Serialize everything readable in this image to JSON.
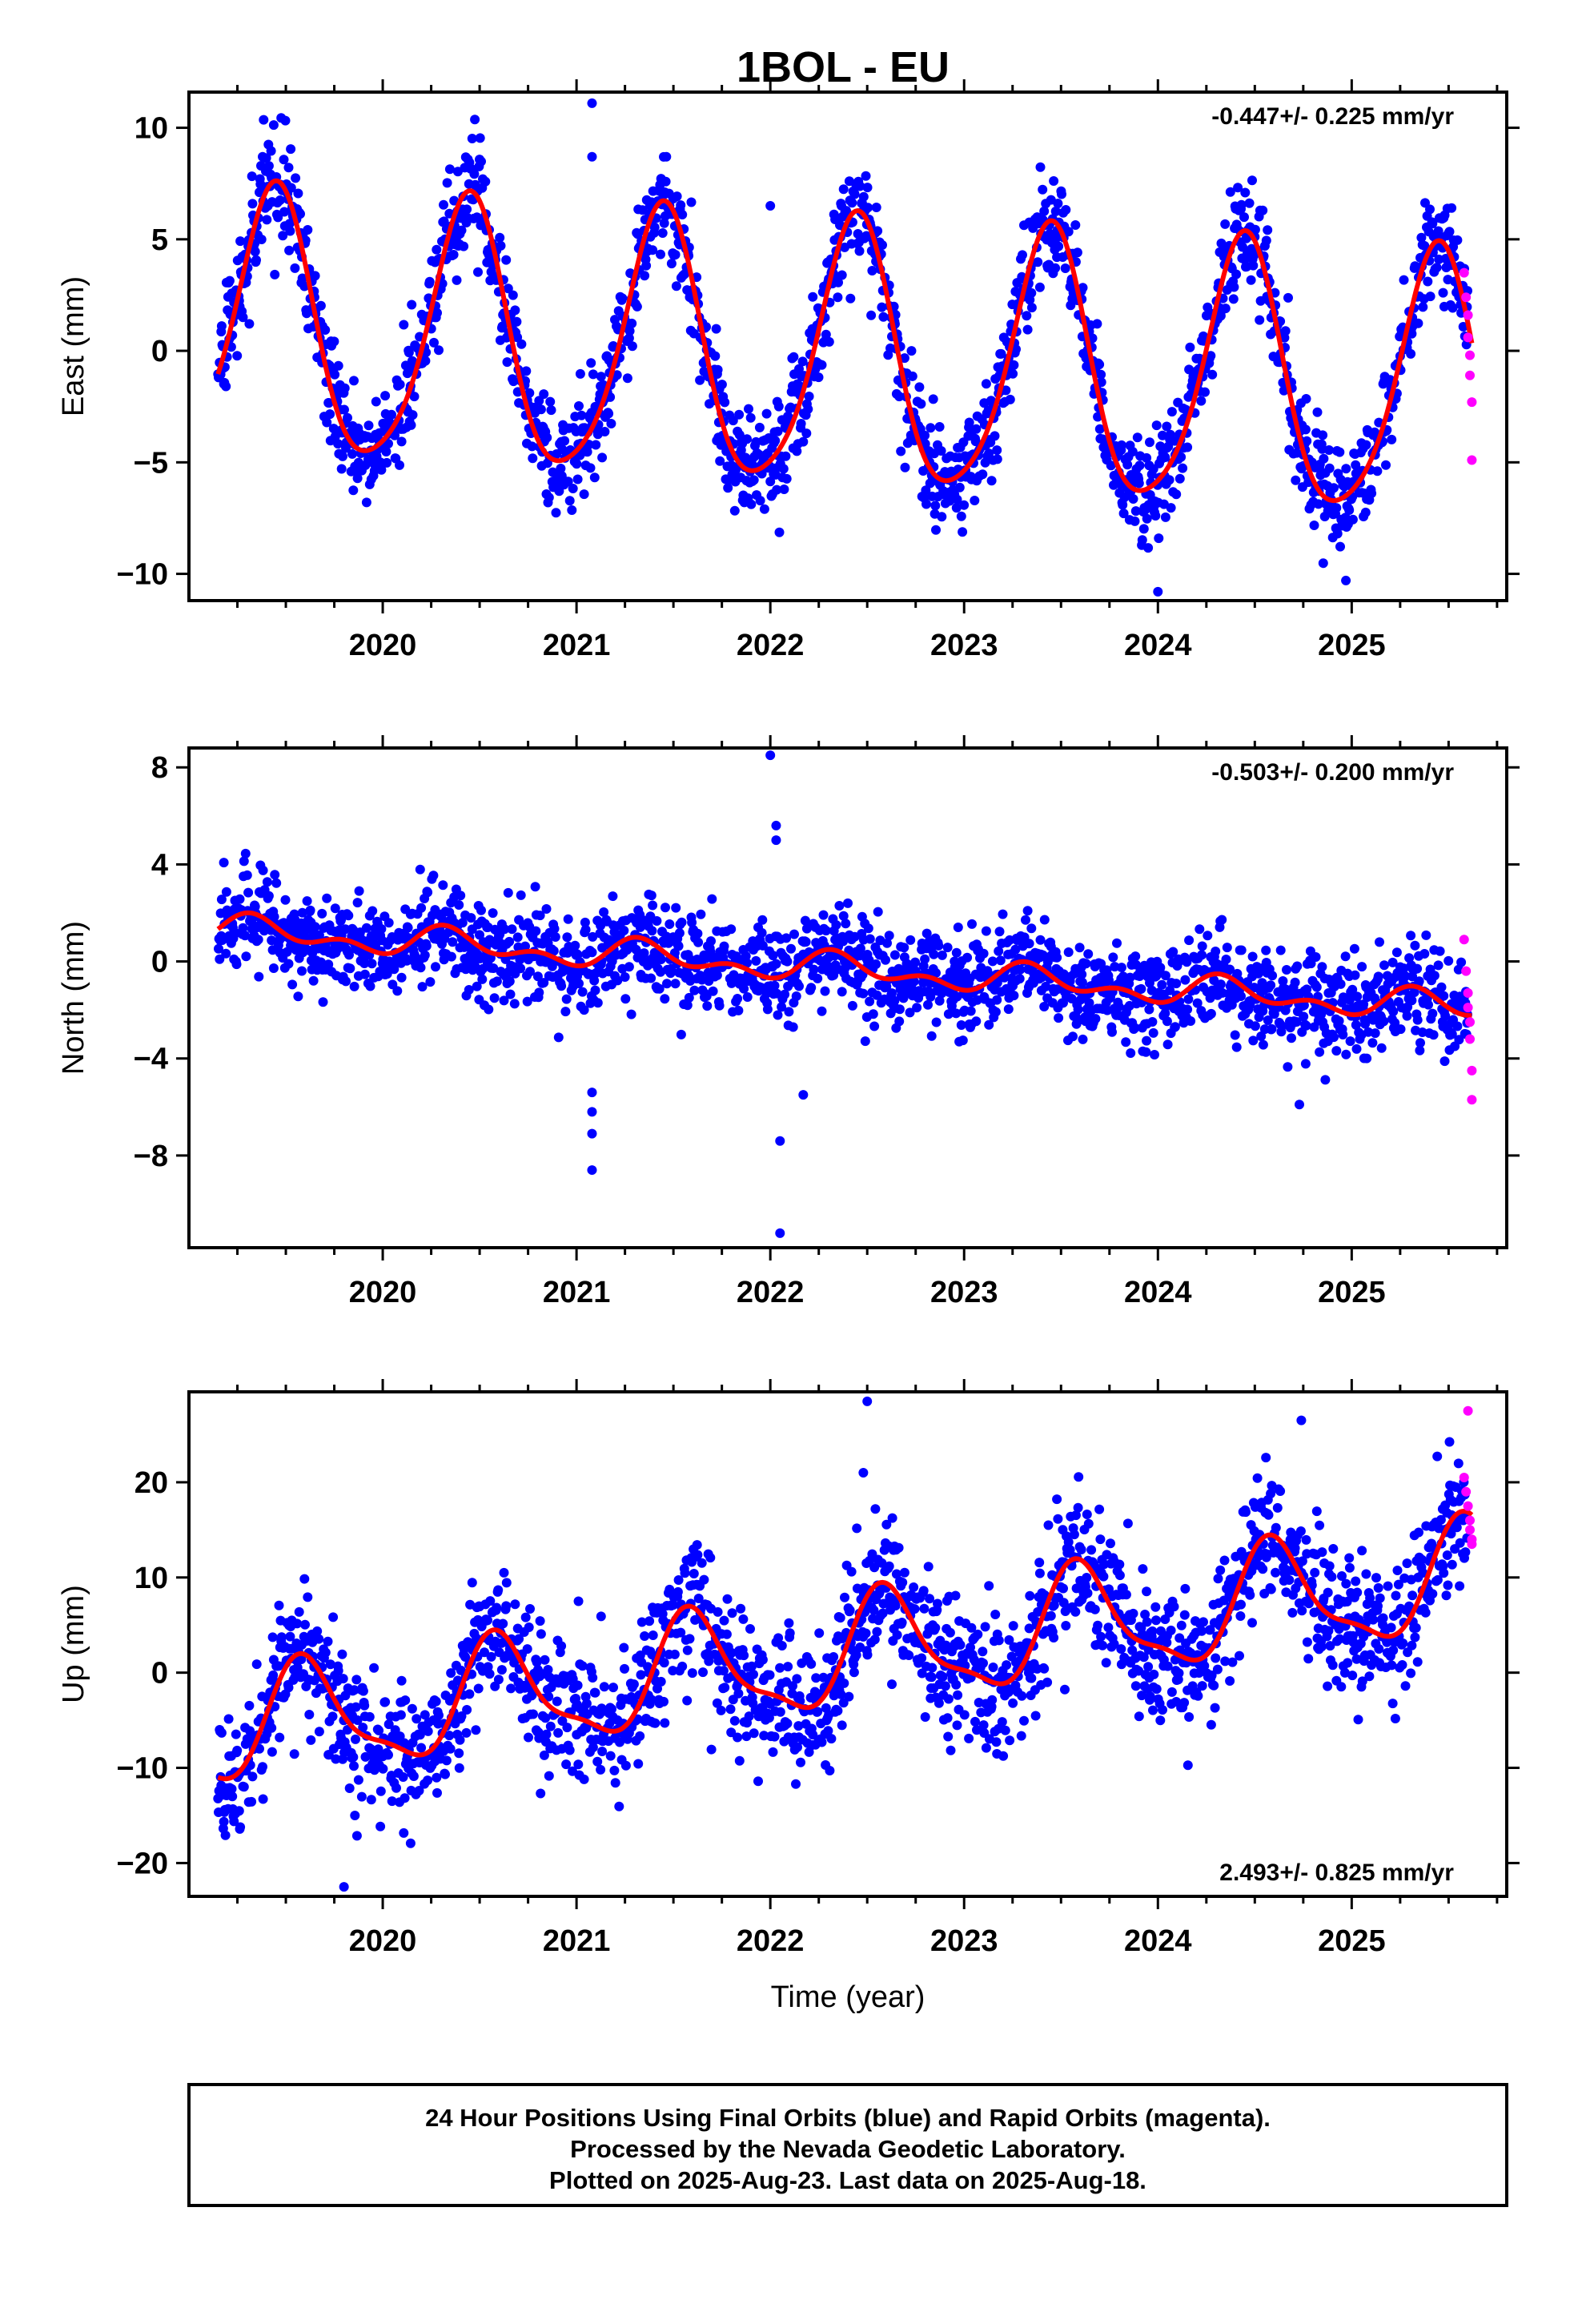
{
  "title": "1BOL - EU",
  "footer": {
    "line1": "24 Hour Positions Using Final Orbits (blue) and Rapid Orbits (magenta).",
    "line2": "Processed by the Nevada Geodetic Laboratory.",
    "line3": "Plotted on 2025-Aug-23. Last data on 2025-Aug-18."
  },
  "colors": {
    "final_orbits": "#0000ff",
    "rapid_orbits": "#ff00ff",
    "model_fit": "#ff0000"
  },
  "chart_data": [
    {
      "type": "scatter",
      "name": "east",
      "ylabel": "East (mm)",
      "xlabel": "",
      "rate_text": "-0.447+/- 0.225 mm/yr",
      "rate_position": "top-right",
      "xlim": [
        2019.0,
        2025.8
      ],
      "ylim": [
        -11.2,
        11.6
      ],
      "x_ticks": [
        2020,
        2021,
        2022,
        2023,
        2024,
        2025
      ],
      "x_tick_labels": [
        "2020",
        "2021",
        "2022",
        "2023",
        "2024",
        "2025"
      ],
      "y_ticks": [
        -10,
        -5,
        0,
        5,
        10
      ],
      "y_tick_labels": [
        "−10",
        "−5",
        "0",
        "5",
        "10"
      ],
      "grid": false,
      "model": {
        "t0": 2019.15,
        "t1": 2025.62,
        "offset": 1.0,
        "rate": -0.447,
        "annual_amp": 5.9,
        "annual_peak": 2019.44,
        "semiannual_amp": 0.9,
        "semiannual_peak": 2019.47
      },
      "scatter": {
        "sigma": 1.2,
        "outliers": [
          [
            2021.08,
            11.1
          ],
          [
            2021.08,
            8.7
          ],
          [
            2024.0,
            -10.8
          ],
          [
            2024.97,
            -10.3
          ],
          [
            2022.0,
            6.5
          ]
        ]
      },
      "rapid": {
        "points": [
          [
            2025.58,
            3.5
          ],
          [
            2025.59,
            2.4
          ],
          [
            2025.6,
            1.6
          ],
          [
            2025.6,
            0.6
          ],
          [
            2025.61,
            -0.2
          ],
          [
            2025.61,
            -1.1
          ],
          [
            2025.62,
            -2.3
          ],
          [
            2025.62,
            -4.9
          ]
        ]
      }
    },
    {
      "type": "scatter",
      "name": "north",
      "ylabel": "North (mm)",
      "xlabel": "",
      "rate_text": "-0.503+/- 0.200 mm/yr",
      "rate_position": "top-right",
      "xlim": [
        2019.0,
        2025.8
      ],
      "ylim": [
        -11.8,
        8.8
      ],
      "x_ticks": [
        2020,
        2021,
        2022,
        2023,
        2024,
        2025
      ],
      "x_tick_labels": [
        "2020",
        "2021",
        "2022",
        "2023",
        "2024",
        "2025"
      ],
      "y_ticks": [
        -8,
        -4,
        0,
        4,
        8
      ],
      "y_tick_labels": [
        "−8",
        "−4",
        "0",
        "4",
        "8"
      ],
      "grid": false,
      "model": {
        "t0": 2019.15,
        "t1": 2025.62,
        "offset": 1.3,
        "rate": -0.503,
        "annual_amp": 0.45,
        "annual_peak": 2019.35,
        "semiannual_amp": 0.35,
        "semiannual_peak": 2019.3
      },
      "scatter": {
        "sigma": 1.0,
        "outliers": [
          [
            2021.08,
            -8.6
          ],
          [
            2021.08,
            -7.1
          ],
          [
            2021.08,
            -6.2
          ],
          [
            2021.08,
            -5.4
          ],
          [
            2022.0,
            8.5
          ],
          [
            2022.03,
            5.6
          ],
          [
            2022.03,
            5.0
          ],
          [
            2022.05,
            -7.4
          ],
          [
            2022.05,
            -11.2
          ],
          [
            2022.17,
            -5.5
          ],
          [
            2024.73,
            -5.9
          ]
        ]
      },
      "rapid": {
        "points": [
          [
            2025.58,
            0.9
          ],
          [
            2025.59,
            -0.4
          ],
          [
            2025.6,
            -1.3
          ],
          [
            2025.6,
            -1.9
          ],
          [
            2025.61,
            -2.5
          ],
          [
            2025.61,
            -3.2
          ],
          [
            2025.62,
            -4.5
          ],
          [
            2025.62,
            -5.7
          ]
        ]
      }
    },
    {
      "type": "scatter",
      "name": "up",
      "ylabel": "Up (mm)",
      "xlabel": "Time (year)",
      "rate_text": "2.493+/- 0.825 mm/yr",
      "rate_position": "bottom-right",
      "xlim": [
        2019.0,
        2025.8
      ],
      "ylim": [
        -23.5,
        29.5
      ],
      "x_ticks": [
        2020,
        2021,
        2022,
        2023,
        2024,
        2025
      ],
      "x_tick_labels": [
        "2020",
        "2021",
        "2022",
        "2023",
        "2024",
        "2025"
      ],
      "y_ticks": [
        -20,
        -10,
        0,
        10,
        20
      ],
      "y_tick_labels": [
        "−20",
        "−10",
        "0",
        "10",
        "20"
      ],
      "grid": false,
      "model": {
        "t0": 2019.15,
        "t1": 2025.62,
        "offset": -6.2,
        "rate": 2.493,
        "annual_amp": 5.6,
        "annual_peak": 2019.6,
        "semiannual_amp": 1.7,
        "semiannual_peak": 2019.55
      },
      "scatter": {
        "sigma": 3.6,
        "outliers": [
          [
            2022.5,
            28.5
          ],
          [
            2022.48,
            21.0
          ],
          [
            2024.74,
            26.5
          ],
          [
            2019.8,
            -22.5
          ],
          [
            2021.01,
            7.5
          ]
        ]
      },
      "rapid": {
        "points": [
          [
            2025.6,
            27.5
          ],
          [
            2025.58,
            20.5
          ],
          [
            2025.59,
            19.0
          ],
          [
            2025.6,
            17.5
          ],
          [
            2025.61,
            16.0
          ],
          [
            2025.61,
            15.0
          ],
          [
            2025.62,
            14.0
          ],
          [
            2025.62,
            13.5
          ]
        ]
      }
    }
  ]
}
